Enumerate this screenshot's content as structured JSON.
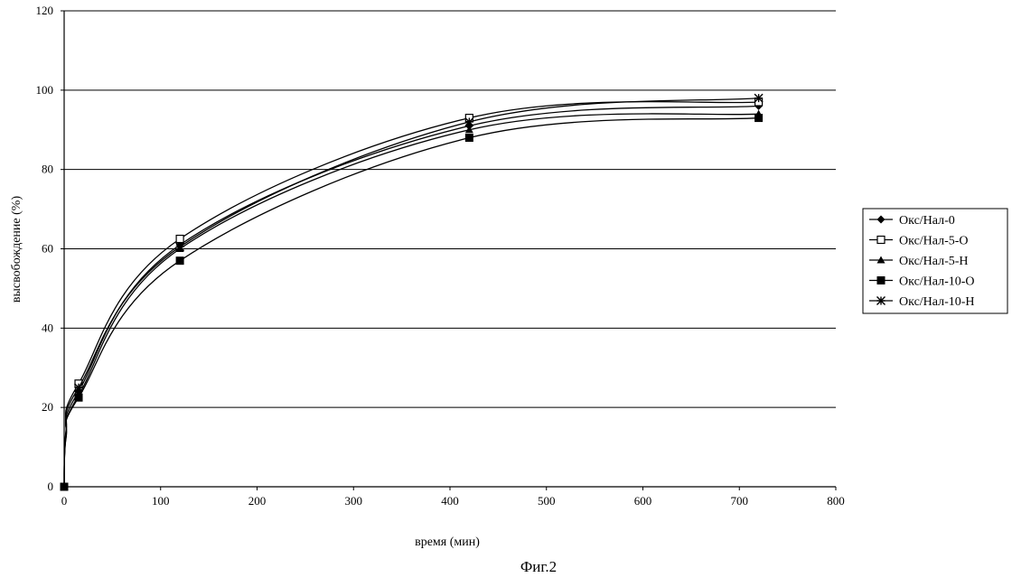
{
  "caption": "Фиг.2",
  "chart_data": {
    "type": "line",
    "xlabel": "время (мин)",
    "ylabel": "высвобождение (%)",
    "xlim": [
      0,
      800
    ],
    "ylim": [
      0,
      120
    ],
    "xticks": [
      0,
      100,
      200,
      300,
      400,
      500,
      600,
      700,
      800
    ],
    "yticks": [
      0,
      20,
      40,
      60,
      80,
      100,
      120
    ],
    "grid": "horizontal",
    "legend_position": "right",
    "series": [
      {
        "name": "Окс/Нал-0",
        "marker": "diamond",
        "x": [
          0,
          15,
          120,
          420,
          720
        ],
        "y": [
          0,
          24,
          61,
          91,
          96
        ]
      },
      {
        "name": "Окс/Нал-5-О",
        "marker": "square-open",
        "x": [
          0,
          15,
          120,
          420,
          720
        ],
        "y": [
          0,
          26,
          62.5,
          93,
          97
        ]
      },
      {
        "name": "Окс/Нал-5-Н",
        "marker": "triangle",
        "x": [
          0,
          15,
          120,
          420,
          720
        ],
        "y": [
          0,
          23,
          60,
          90,
          94
        ]
      },
      {
        "name": "Окс/Нал-10-О",
        "marker": "square-filled",
        "x": [
          0,
          15,
          120,
          420,
          720
        ],
        "y": [
          0,
          22.5,
          57,
          88,
          93
        ]
      },
      {
        "name": "Окс/Нал-10-Н",
        "marker": "star",
        "x": [
          0,
          15,
          120,
          420,
          720
        ],
        "y": [
          0,
          25,
          60.5,
          92,
          98
        ]
      }
    ]
  }
}
